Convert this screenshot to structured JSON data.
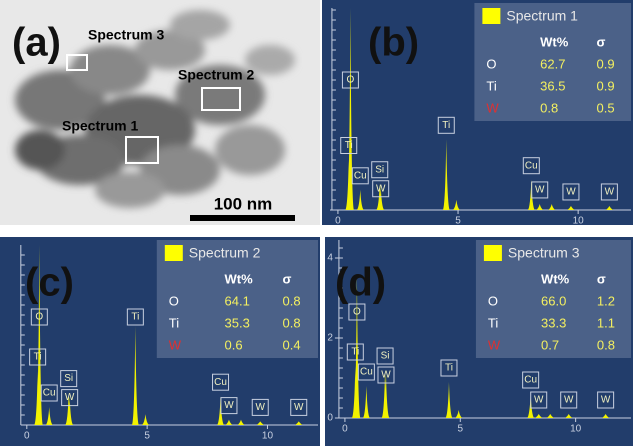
{
  "tem_image": {
    "label": "(a)",
    "scale_bar": "100 nm",
    "regions": [
      {
        "label": "Spectrum 3"
      },
      {
        "label": "Spectrum 2"
      },
      {
        "label": "Spectrum 1"
      }
    ]
  },
  "spectra": [
    {
      "label": "(b)",
      "legend": "Spectrum 1",
      "legend_color": "#ffff00",
      "peak_color": "#f2f200",
      "table": {
        "header": [
          "Wt%",
          "σ"
        ],
        "rows": [
          {
            "element": "O",
            "wt": "62.7",
            "sigma": "0.9",
            "color": "#ffffff"
          },
          {
            "element": "Ti",
            "wt": "36.5",
            "sigma": "0.9",
            "color": "#ffffff"
          },
          {
            "element": "W",
            "wt": "0.8",
            "sigma": "0.5",
            "color": "#e03030"
          }
        ]
      },
      "xlim": [
        -0.33,
        12.2
      ],
      "xticks": [
        0,
        5,
        10
      ],
      "ylim": [
        0,
        10
      ],
      "peaks": [
        {
          "label": "O",
          "x": 0.52,
          "height": 10
        },
        {
          "label": "Ti",
          "x": 0.45,
          "height": 2.5
        },
        {
          "label": "Cu",
          "x": 0.93,
          "height": 1.0
        },
        {
          "label": "Si",
          "x": 1.74,
          "height": 1.3
        },
        {
          "label": "W",
          "x": 1.78,
          "height": 1.2
        },
        {
          "label": "Ti",
          "x": 4.51,
          "height": 3.5
        },
        {
          "label": null,
          "x": 4.93,
          "height": 0.5
        },
        {
          "label": "Cu",
          "x": 8.05,
          "height": 1.5
        },
        {
          "label": "W",
          "x": 8.4,
          "height": 0.3
        },
        {
          "label": null,
          "x": 8.9,
          "height": 0.3
        },
        {
          "label": "W",
          "x": 9.7,
          "height": 0.2
        },
        {
          "label": "W",
          "x": 11.3,
          "height": 0.2
        }
      ]
    },
    {
      "label": "(c)",
      "legend": "Spectrum 2",
      "legend_color": "#ffff00",
      "peak_color": "#f2f200",
      "table": {
        "header": [
          "Wt%",
          "σ"
        ],
        "rows": [
          {
            "element": "O",
            "wt": "64.1",
            "sigma": "0.8",
            "color": "#ffffff"
          },
          {
            "element": "Ti",
            "wt": "35.3",
            "sigma": "0.8",
            "color": "#ffffff"
          },
          {
            "element": "W",
            "wt": "0.6",
            "sigma": "0.4",
            "color": "#e03030"
          }
        ]
      },
      "xlim": [
        -0.2,
        12.1
      ],
      "xticks": [
        0,
        5,
        10
      ],
      "ylim": [
        0,
        10
      ],
      "peaks": [
        {
          "label": "O",
          "x": 0.52,
          "height": 10
        },
        {
          "label": "Ti",
          "x": 0.45,
          "height": 3.0
        },
        {
          "label": "Cu",
          "x": 0.93,
          "height": 1.0
        },
        {
          "label": "Si",
          "x": 1.74,
          "height": 1.8
        },
        {
          "label": "W",
          "x": 1.78,
          "height": 1.6
        },
        {
          "label": "Ti",
          "x": 4.51,
          "height": 5.5
        },
        {
          "label": null,
          "x": 4.93,
          "height": 0.6
        },
        {
          "label": "Cu",
          "x": 8.05,
          "height": 1.6
        },
        {
          "label": "W",
          "x": 8.4,
          "height": 0.3
        },
        {
          "label": null,
          "x": 8.9,
          "height": 0.3
        },
        {
          "label": "W",
          "x": 9.7,
          "height": 0.2
        },
        {
          "label": "W",
          "x": 11.3,
          "height": 0.2
        }
      ]
    },
    {
      "label": "(d)",
      "legend": "Spectrum 3",
      "legend_color": "#ffff00",
      "peak_color": "#f2f200",
      "table": {
        "header": [
          "Wt%",
          "σ"
        ],
        "rows": [
          {
            "element": "O",
            "wt": "66.0",
            "sigma": "1.2",
            "color": "#ffffff"
          },
          {
            "element": "Ti",
            "wt": "33.3",
            "sigma": "1.1",
            "color": "#ffffff"
          },
          {
            "element": "W",
            "wt": "0.7",
            "sigma": "0.8",
            "color": "#e03030"
          }
        ]
      },
      "xlim": [
        -0.43,
        12.4
      ],
      "xticks": [
        0,
        5,
        10
      ],
      "ylim": [
        0,
        4.45
      ],
      "yticks": [
        0,
        2,
        4
      ],
      "peaks": [
        {
          "label": "O",
          "x": 0.52,
          "height": 3.6
        },
        {
          "label": "Ti",
          "x": 0.45,
          "height": 1.3
        },
        {
          "label": "Cu",
          "x": 0.93,
          "height": 0.8
        },
        {
          "label": "Si",
          "x": 1.74,
          "height": 1.2
        },
        {
          "label": "W",
          "x": 1.78,
          "height": 1.1
        },
        {
          "label": "Ti",
          "x": 4.51,
          "height": 0.9
        },
        {
          "label": null,
          "x": 4.93,
          "height": 0.2
        },
        {
          "label": "Cu",
          "x": 8.05,
          "height": 0.6
        },
        {
          "label": "W",
          "x": 8.4,
          "height": 0.1
        },
        {
          "label": null,
          "x": 8.9,
          "height": 0.1
        },
        {
          "label": "W",
          "x": 9.7,
          "height": 0.1
        },
        {
          "label": "W",
          "x": 11.3,
          "height": 0.1
        }
      ]
    }
  ]
}
